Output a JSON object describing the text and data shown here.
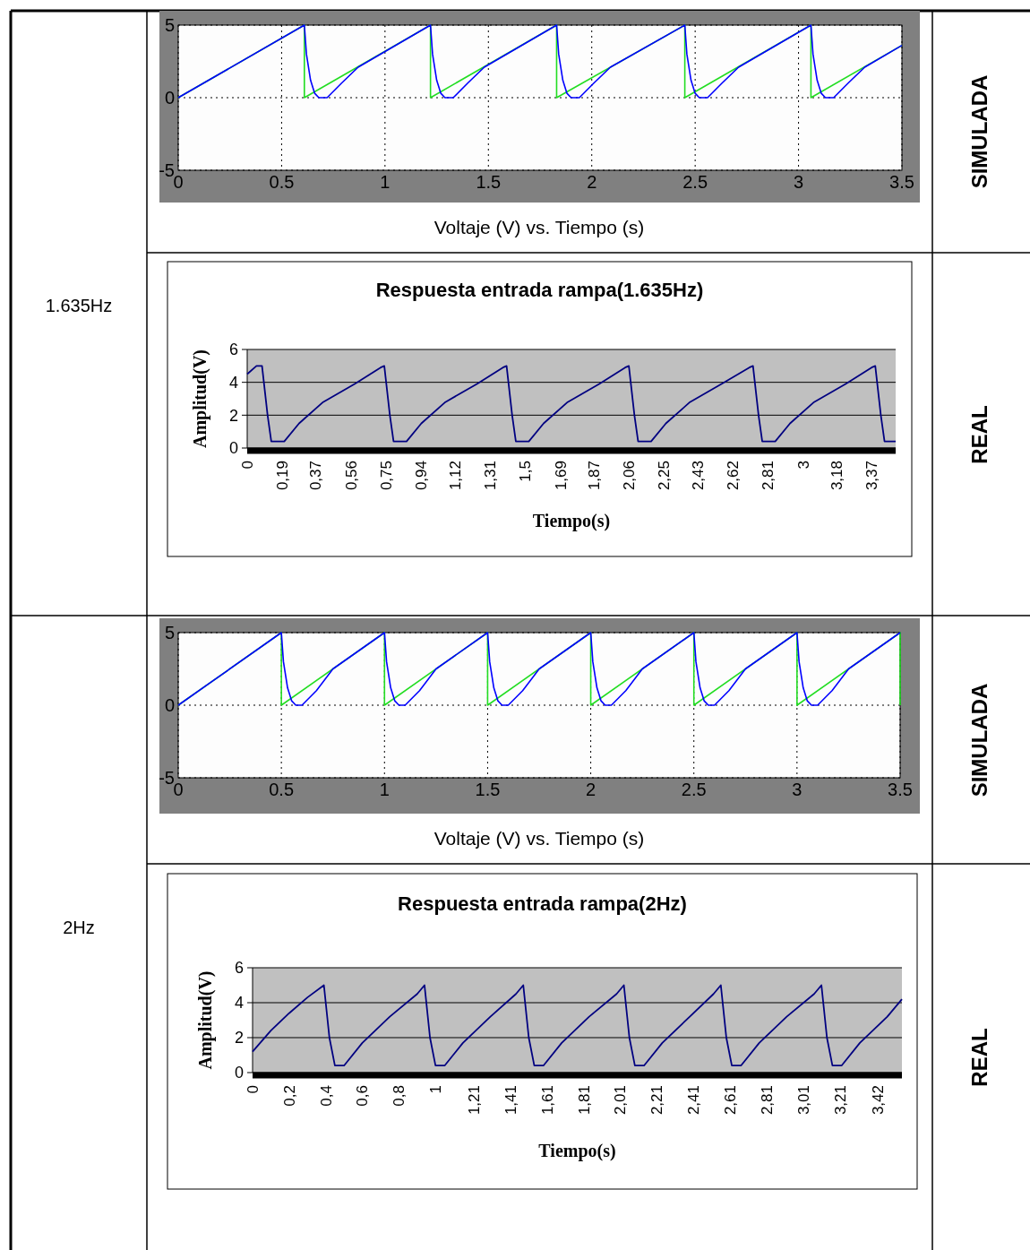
{
  "chart_data": [
    {
      "type": "line",
      "annotations": [
        "Voltaje (V) vs.  Tiempo (s)",
        "1.635Hz",
        "SIMULADA"
      ],
      "xlim": [
        0,
        3.5
      ],
      "ylim": [
        -5,
        5
      ],
      "xticks": [
        0,
        0.5,
        1,
        1.5,
        2,
        2.5,
        3,
        3.5
      ],
      "yticks": [
        -5,
        0,
        5
      ],
      "grid": true,
      "series": [
        {
          "color": "#22dd22",
          "x": [
            0,
            0.61,
            0.61,
            1.22,
            1.22,
            1.83,
            1.83,
            2.45,
            2.45,
            3.06,
            3.06,
            3.5
          ],
          "values": [
            0,
            5,
            0,
            5,
            0,
            5,
            0,
            5,
            0,
            5,
            0,
            3.6
          ]
        },
        {
          "color": "#0000ff",
          "x": [
            0,
            0.61,
            0.62,
            0.64,
            0.66,
            0.68,
            0.72,
            0.79,
            0.87,
            1.22,
            1.23,
            1.25,
            1.27,
            1.29,
            1.33,
            1.4,
            1.48,
            1.83,
            1.84,
            1.86,
            1.88,
            1.9,
            1.94,
            2.01,
            2.09,
            2.45,
            2.46,
            2.48,
            2.5,
            2.52,
            2.56,
            2.63,
            2.71,
            3.06,
            3.07,
            3.09,
            3.11,
            3.13,
            3.17,
            3.24,
            3.32,
            3.5
          ],
          "values": [
            0,
            5,
            3,
            1.2,
            0.3,
            0,
            0,
            1,
            2.1,
            5,
            3,
            1.2,
            0.3,
            0,
            0,
            1,
            2.1,
            5,
            3,
            1.2,
            0.3,
            0,
            0,
            1,
            2.1,
            5,
            3,
            1.2,
            0.3,
            0,
            0,
            1,
            2.1,
            5,
            3,
            1.2,
            0.3,
            0,
            0,
            1,
            2.1,
            3.6
          ]
        }
      ]
    },
    {
      "type": "line",
      "title": "Respuesta entrada rampa(1.635Hz)",
      "xlabel": "Tiempo(s)",
      "ylabel": "Amplitud(V)",
      "annotations": [
        "REAL"
      ],
      "xlim": [
        0,
        3.5
      ],
      "ylim": [
        0,
        6
      ],
      "yticks": [
        0,
        2,
        4,
        6
      ],
      "grid": "y",
      "xticks": [
        0,
        {
          "value": 0.19,
          "label": "0,19"
        },
        {
          "value": 0.37,
          "label": "0,37"
        },
        {
          "value": 0.56,
          "label": "0,56"
        },
        {
          "value": 0.75,
          "label": "0,75"
        },
        {
          "value": 0.94,
          "label": "0,94"
        },
        {
          "value": 1.12,
          "label": "1,12"
        },
        {
          "value": 1.31,
          "label": "1,31"
        },
        {
          "value": 1.5,
          "label": "1,5"
        },
        {
          "value": 1.69,
          "label": "1,69"
        },
        {
          "value": 1.87,
          "label": "1,87"
        },
        {
          "value": 2.06,
          "label": "2,06"
        },
        {
          "value": 2.25,
          "label": "2,25"
        },
        {
          "value": 2.43,
          "label": "2,43"
        },
        {
          "value": 2.62,
          "label": "2,62"
        },
        {
          "value": 2.81,
          "label": "2,81"
        },
        3,
        {
          "value": 3.18,
          "label": "3,18"
        },
        {
          "value": 3.37,
          "label": "3,37"
        }
      ],
      "series": [
        {
          "color": "#000080",
          "x": [
            0,
            0.05,
            0.08,
            0.11,
            0.13,
            0.2,
            0.28,
            0.41,
            0.58,
            0.72,
            0.74,
            0.77,
            0.79,
            0.86,
            0.94,
            1.07,
            1.24,
            1.38,
            1.4,
            1.43,
            1.45,
            1.52,
            1.6,
            1.73,
            1.9,
            2.04,
            2.06,
            2.09,
            2.11,
            2.18,
            2.26,
            2.39,
            2.56,
            2.71,
            2.73,
            2.76,
            2.78,
            2.85,
            2.93,
            3.06,
            3.23,
            3.37,
            3.39,
            3.42,
            3.44,
            3.5
          ],
          "values": [
            4.5,
            5,
            5,
            2,
            0.4,
            0.4,
            1.5,
            2.8,
            3.9,
            4.9,
            5,
            2,
            0.4,
            0.4,
            1.5,
            2.8,
            3.9,
            4.9,
            5,
            2,
            0.4,
            0.4,
            1.5,
            2.8,
            3.9,
            4.9,
            5,
            2,
            0.4,
            0.4,
            1.5,
            2.8,
            3.9,
            4.9,
            5,
            2,
            0.4,
            0.4,
            1.5,
            2.8,
            3.9,
            4.9,
            5,
            2,
            0.4,
            0.4
          ]
        }
      ]
    },
    {
      "type": "line",
      "annotations": [
        "Voltaje (V) vs.  Tiempo (s)",
        "2Hz",
        "SIMULADA"
      ],
      "xlim": [
        0,
        3.5
      ],
      "ylim": [
        -5,
        5
      ],
      "xticks": [
        0,
        0.5,
        1,
        1.5,
        2,
        2.5,
        3,
        3.5
      ],
      "yticks": [
        -5,
        0,
        5
      ],
      "grid": true,
      "series": [
        {
          "color": "#22dd22",
          "x": [
            0,
            0.5,
            0.5,
            1,
            1,
            1.5,
            1.5,
            2,
            2,
            2.5,
            2.5,
            3,
            3,
            3.5,
            3.5
          ],
          "values": [
            0,
            5,
            0,
            5,
            0,
            5,
            0,
            5,
            0,
            5,
            0,
            5,
            0,
            5,
            0
          ]
        },
        {
          "color": "#0000ff",
          "x": [
            0,
            0.5,
            0.51,
            0.53,
            0.55,
            0.57,
            0.6,
            0.67,
            0.75,
            1,
            1.01,
            1.03,
            1.05,
            1.07,
            1.1,
            1.17,
            1.25,
            1.5,
            1.51,
            1.53,
            1.55,
            1.57,
            1.6,
            1.67,
            1.75,
            2,
            2.01,
            2.03,
            2.05,
            2.07,
            2.1,
            2.17,
            2.25,
            2.5,
            2.51,
            2.53,
            2.55,
            2.57,
            2.6,
            2.67,
            2.75,
            3,
            3.01,
            3.03,
            3.05,
            3.07,
            3.1,
            3.17,
            3.25,
            3.5
          ],
          "values": [
            0,
            5,
            3,
            1.2,
            0.3,
            0,
            0,
            1,
            2.5,
            5,
            3,
            1.2,
            0.3,
            0,
            0,
            1,
            2.5,
            5,
            3,
            1.2,
            0.3,
            0,
            0,
            1,
            2.5,
            5,
            3,
            1.2,
            0.3,
            0,
            0,
            1,
            2.5,
            5,
            3,
            1.2,
            0.3,
            0,
            0,
            1,
            2.5,
            5,
            3,
            1.2,
            0.3,
            0,
            0,
            1,
            2.5,
            5
          ]
        }
      ]
    },
    {
      "type": "line",
      "title": "Respuesta entrada rampa(2Hz)",
      "xlabel": "Tiempo(s)",
      "ylabel": "Amplitud(V)",
      "annotations": [
        "REAL"
      ],
      "xlim": [
        0,
        3.55
      ],
      "ylim": [
        0,
        6
      ],
      "yticks": [
        0,
        2,
        4,
        6
      ],
      "grid": "y",
      "xticks": [
        0,
        {
          "value": 0.2,
          "label": "0,2"
        },
        {
          "value": 0.4,
          "label": "0,4"
        },
        {
          "value": 0.6,
          "label": "0,6"
        },
        {
          "value": 0.8,
          "label": "0,8"
        },
        1,
        {
          "value": 1.21,
          "label": "1,21"
        },
        {
          "value": 1.41,
          "label": "1,41"
        },
        {
          "value": 1.61,
          "label": "1,61"
        },
        {
          "value": 1.81,
          "label": "1,81"
        },
        {
          "value": 2.01,
          "label": "2,01"
        },
        {
          "value": 2.21,
          "label": "2,21"
        },
        {
          "value": 2.41,
          "label": "2,41"
        },
        {
          "value": 2.61,
          "label": "2,61"
        },
        {
          "value": 2.81,
          "label": "2,81"
        },
        {
          "value": 3.01,
          "label": "3,01"
        },
        {
          "value": 3.21,
          "label": "3,21"
        },
        {
          "value": 3.42,
          "label": "3,42"
        }
      ],
      "series": [
        {
          "color": "#000080",
          "x": [
            0,
            0.1,
            0.2,
            0.3,
            0.39,
            0.42,
            0.45,
            0.5,
            0.6,
            0.75,
            0.9,
            0.94,
            0.97,
            1,
            1.05,
            1.15,
            1.3,
            1.44,
            1.48,
            1.51,
            1.54,
            1.59,
            1.69,
            1.84,
            1.99,
            2.03,
            2.06,
            2.09,
            2.14,
            2.24,
            2.39,
            2.52,
            2.56,
            2.59,
            2.62,
            2.67,
            2.77,
            2.92,
            3.07,
            3.11,
            3.14,
            3.17,
            3.22,
            3.32,
            3.47,
            3.55
          ],
          "values": [
            1.2,
            2.4,
            3.4,
            4.3,
            5,
            2,
            0.4,
            0.4,
            1.7,
            3.2,
            4.5,
            5,
            2,
            0.4,
            0.4,
            1.7,
            3.2,
            4.5,
            5,
            2,
            0.4,
            0.4,
            1.7,
            3.2,
            4.5,
            5,
            2,
            0.4,
            0.4,
            1.7,
            3.2,
            4.5,
            5,
            2,
            0.4,
            0.4,
            1.7,
            3.2,
            4.5,
            5,
            2,
            0.4,
            0.4,
            1.7,
            3.2,
            4.2
          ]
        }
      ]
    }
  ]
}
